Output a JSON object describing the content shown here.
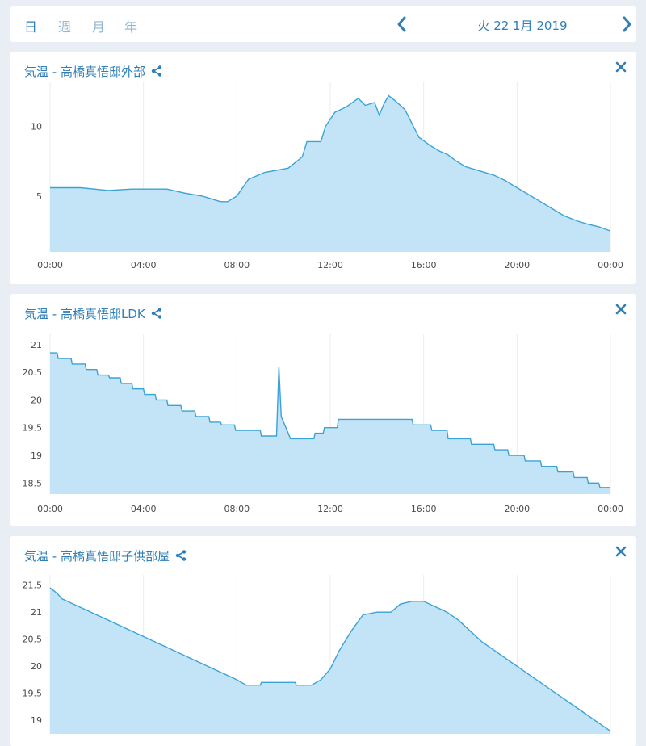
{
  "topbar": {
    "tabs": [
      {
        "label": "日",
        "active": true
      },
      {
        "label": "週",
        "active": false
      },
      {
        "label": "月",
        "active": false
      },
      {
        "label": "年",
        "active": false
      }
    ],
    "date_label": "火 22 1月 2019",
    "prev_icon": "chevron-left-icon",
    "next_icon": "chevron-right-icon"
  },
  "colors": {
    "accent": "#2f7fb5",
    "area_fill": "#c3e4f6",
    "line": "#3aa3d6",
    "grid": "#ececec"
  },
  "chart_data": [
    {
      "type": "area",
      "title": "気温 - 高橋真悟邸外部",
      "x_ticks": [
        "00:00",
        "04:00",
        "08:00",
        "12:00",
        "16:00",
        "20:00",
        "00:00"
      ],
      "y_ticks": [
        5,
        10
      ],
      "ylim": [
        1.0,
        12.8
      ],
      "xlim": [
        0,
        24
      ],
      "grid": true,
      "points": [
        [
          0,
          5.6
        ],
        [
          1.3,
          5.6
        ],
        [
          2.5,
          5.4
        ],
        [
          3.5,
          5.5
        ],
        [
          5.0,
          5.5
        ],
        [
          5.8,
          5.2
        ],
        [
          6.5,
          5.0
        ],
        [
          7.3,
          4.6
        ],
        [
          7.6,
          4.6
        ],
        [
          8.0,
          5.0
        ],
        [
          8.5,
          6.2
        ],
        [
          9.2,
          6.7
        ],
        [
          10.2,
          7.0
        ],
        [
          10.8,
          7.8
        ],
        [
          11.0,
          8.9
        ],
        [
          11.6,
          8.9
        ],
        [
          11.8,
          10.0
        ],
        [
          12.2,
          11.0
        ],
        [
          12.7,
          11.4
        ],
        [
          13.2,
          12.0
        ],
        [
          13.5,
          11.5
        ],
        [
          13.9,
          11.7
        ],
        [
          14.1,
          10.8
        ],
        [
          14.3,
          11.6
        ],
        [
          14.5,
          12.2
        ],
        [
          14.8,
          11.8
        ],
        [
          15.2,
          11.2
        ],
        [
          15.5,
          10.2
        ],
        [
          15.8,
          9.2
        ],
        [
          16.3,
          8.6
        ],
        [
          16.7,
          8.2
        ],
        [
          17.0,
          8.0
        ],
        [
          17.4,
          7.5
        ],
        [
          17.8,
          7.1
        ],
        [
          18.4,
          6.8
        ],
        [
          19.0,
          6.5
        ],
        [
          19.5,
          6.1
        ],
        [
          20.0,
          5.6
        ],
        [
          20.5,
          5.1
        ],
        [
          21.0,
          4.6
        ],
        [
          21.5,
          4.1
        ],
        [
          22.0,
          3.6
        ],
        [
          22.6,
          3.2
        ],
        [
          23.0,
          3.0
        ],
        [
          23.5,
          2.8
        ],
        [
          24.0,
          2.5
        ]
      ]
    },
    {
      "type": "area",
      "title": "気温 - 高橋真悟邸LDK",
      "x_ticks": [
        "00:00",
        "04:00",
        "08:00",
        "12:00",
        "16:00",
        "20:00",
        "00:00"
      ],
      "y_ticks": [
        18.5,
        19,
        19.5,
        20,
        20.5,
        21
      ],
      "ylim": [
        18.3,
        21.1
      ],
      "xlim": [
        0,
        24
      ],
      "grid": true,
      "points": [
        [
          0,
          20.85
        ],
        [
          0.3,
          20.85
        ],
        [
          0.35,
          20.75
        ],
        [
          0.9,
          20.75
        ],
        [
          0.95,
          20.65
        ],
        [
          1.5,
          20.65
        ],
        [
          1.55,
          20.55
        ],
        [
          2.0,
          20.55
        ],
        [
          2.05,
          20.45
        ],
        [
          2.5,
          20.45
        ],
        [
          2.55,
          20.4
        ],
        [
          3.0,
          20.4
        ],
        [
          3.05,
          20.3
        ],
        [
          3.5,
          20.3
        ],
        [
          3.55,
          20.2
        ],
        [
          4.0,
          20.2
        ],
        [
          4.05,
          20.1
        ],
        [
          4.5,
          20.1
        ],
        [
          4.55,
          20.0
        ],
        [
          5.0,
          20.0
        ],
        [
          5.05,
          19.9
        ],
        [
          5.6,
          19.9
        ],
        [
          5.65,
          19.8
        ],
        [
          6.2,
          19.8
        ],
        [
          6.25,
          19.7
        ],
        [
          6.8,
          19.7
        ],
        [
          6.85,
          19.6
        ],
        [
          7.3,
          19.6
        ],
        [
          7.35,
          19.55
        ],
        [
          7.9,
          19.55
        ],
        [
          7.95,
          19.45
        ],
        [
          9.0,
          19.45
        ],
        [
          9.05,
          19.35
        ],
        [
          9.7,
          19.35
        ],
        [
          9.8,
          20.6
        ],
        [
          9.9,
          19.7
        ],
        [
          10.1,
          19.5
        ],
        [
          10.3,
          19.3
        ],
        [
          11.3,
          19.3
        ],
        [
          11.35,
          19.4
        ],
        [
          11.7,
          19.4
        ],
        [
          11.75,
          19.5
        ],
        [
          12.3,
          19.5
        ],
        [
          12.35,
          19.65
        ],
        [
          15.5,
          19.65
        ],
        [
          15.55,
          19.55
        ],
        [
          16.3,
          19.55
        ],
        [
          16.35,
          19.45
        ],
        [
          17.0,
          19.45
        ],
        [
          17.05,
          19.3
        ],
        [
          18.0,
          19.3
        ],
        [
          18.05,
          19.2
        ],
        [
          19.0,
          19.2
        ],
        [
          19.05,
          19.1
        ],
        [
          19.6,
          19.1
        ],
        [
          19.65,
          19.0
        ],
        [
          20.3,
          19.0
        ],
        [
          20.35,
          18.9
        ],
        [
          21.0,
          18.9
        ],
        [
          21.05,
          18.8
        ],
        [
          21.7,
          18.8
        ],
        [
          21.75,
          18.7
        ],
        [
          22.4,
          18.7
        ],
        [
          22.45,
          18.6
        ],
        [
          23.0,
          18.6
        ],
        [
          23.05,
          18.5
        ],
        [
          23.5,
          18.5
        ],
        [
          23.55,
          18.42
        ],
        [
          24.0,
          18.42
        ]
      ]
    },
    {
      "type": "area",
      "title": "気温 - 高橋真悟邸子供部屋",
      "x_ticks": [],
      "y_ticks": [
        19,
        19.5,
        20,
        20.5,
        21,
        21.5
      ],
      "ylim": [
        18.75,
        21.6
      ],
      "xlim": [
        0,
        24
      ],
      "grid": true,
      "points": [
        [
          0,
          21.45
        ],
        [
          0.3,
          21.35
        ],
        [
          0.5,
          21.25
        ],
        [
          1.0,
          21.15
        ],
        [
          1.5,
          21.05
        ],
        [
          2.0,
          20.95
        ],
        [
          2.5,
          20.85
        ],
        [
          3.0,
          20.75
        ],
        [
          3.5,
          20.65
        ],
        [
          4.0,
          20.55
        ],
        [
          4.5,
          20.45
        ],
        [
          5.0,
          20.35
        ],
        [
          5.5,
          20.25
        ],
        [
          6.0,
          20.15
        ],
        [
          6.5,
          20.05
        ],
        [
          7.0,
          19.95
        ],
        [
          7.5,
          19.85
        ],
        [
          8.0,
          19.75
        ],
        [
          8.4,
          19.65
        ],
        [
          9.0,
          19.65
        ],
        [
          9.05,
          19.7
        ],
        [
          10.5,
          19.7
        ],
        [
          10.55,
          19.65
        ],
        [
          11.2,
          19.65
        ],
        [
          11.6,
          19.75
        ],
        [
          12.0,
          19.95
        ],
        [
          12.4,
          20.3
        ],
        [
          12.9,
          20.65
        ],
        [
          13.4,
          20.95
        ],
        [
          14.0,
          21.0
        ],
        [
          14.6,
          21.0
        ],
        [
          15.0,
          21.15
        ],
        [
          15.5,
          21.2
        ],
        [
          16.0,
          21.2
        ],
        [
          16.5,
          21.1
        ],
        [
          17.0,
          21.0
        ],
        [
          17.5,
          20.85
        ],
        [
          18.0,
          20.65
        ],
        [
          18.5,
          20.45
        ],
        [
          19.0,
          20.3
        ],
        [
          19.5,
          20.15
        ],
        [
          20.0,
          20.0
        ],
        [
          20.5,
          19.85
        ],
        [
          21.0,
          19.7
        ],
        [
          21.5,
          19.55
        ],
        [
          22.0,
          19.4
        ],
        [
          22.5,
          19.25
        ],
        [
          23.0,
          19.1
        ],
        [
          23.5,
          18.95
        ],
        [
          24.0,
          18.8
        ]
      ]
    }
  ]
}
